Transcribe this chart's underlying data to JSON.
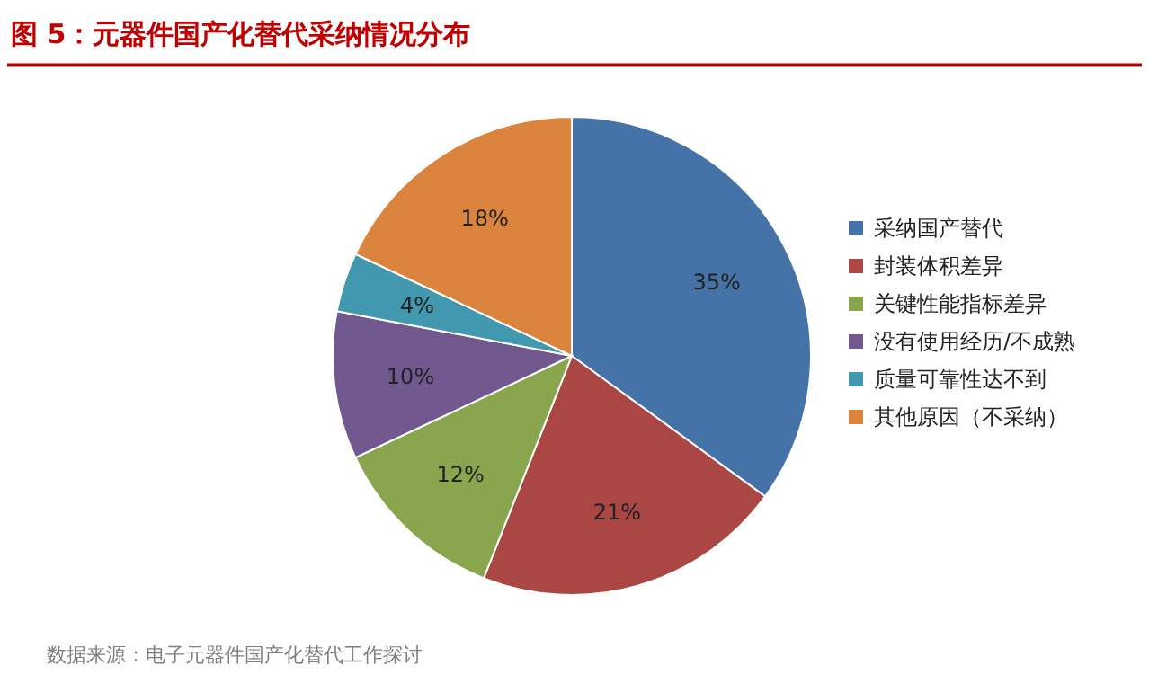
{
  "chart_data": {
    "type": "pie",
    "title": "图 5：元器件国产化替代采纳情况分布",
    "categories": [
      "采纳国产替代",
      "封装体积差异",
      "关键性能指标差异",
      "没有使用经历/不成熟",
      "质量可靠性达不到",
      "其他原因（不采纳）"
    ],
    "values": [
      35,
      21,
      12,
      10,
      4,
      18
    ],
    "colors": [
      "#4572a7",
      "#aa4643",
      "#89a54e",
      "#71588f",
      "#4198af",
      "#db843d"
    ],
    "value_labels": [
      "35%",
      "21%",
      "12%",
      "10%",
      "4%",
      "18%"
    ],
    "legend": "right",
    "annotations": [
      "数据来源：电子元器件国产化替代工作探讨"
    ]
  }
}
